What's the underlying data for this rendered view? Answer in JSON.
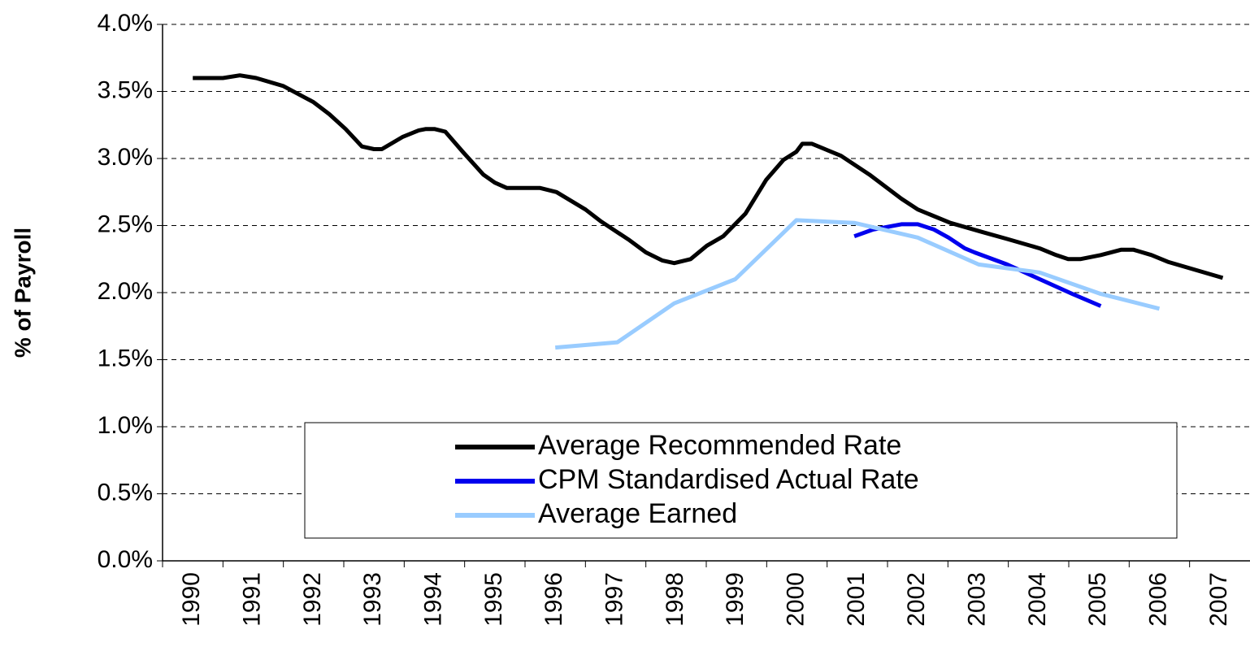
{
  "chart_data": {
    "type": "line",
    "y_label": "% of Payroll",
    "xlim": [
      1989.5,
      2007.5
    ],
    "xticks": [
      1990,
      1991,
      1992,
      1993,
      1994,
      1995,
      1996,
      1997,
      1998,
      1999,
      2000,
      2001,
      2002,
      2003,
      2004,
      2005,
      2006,
      2007
    ],
    "ylim": [
      0,
      4
    ],
    "yticks": [
      {
        "value": 0,
        "label": "0.0%"
      },
      {
        "value": 0.5,
        "label": "0.5%"
      },
      {
        "value": 1,
        "label": "1.0%"
      },
      {
        "value": 1.5,
        "label": "1.5%"
      },
      {
        "value": 2,
        "label": "2.0%"
      },
      {
        "value": 2.5,
        "label": "2.5%"
      },
      {
        "value": 3,
        "label": "3.0%"
      },
      {
        "value": 3.5,
        "label": "3.5%"
      },
      {
        "value": 4,
        "label": "4.0%"
      }
    ],
    "grid": true,
    "legend": "bottom",
    "series": [
      {
        "name": "Average Recommended Rate",
        "color": "#000000",
        "x": [
          1990.0,
          1990.5,
          1990.78,
          1991.05,
          1991.5,
          1992.0,
          1992.26,
          1992.53,
          1992.8,
          1993.0,
          1993.13,
          1993.47,
          1993.74,
          1993.86,
          1994.0,
          1994.18,
          1994.47,
          1994.81,
          1995.0,
          1995.2,
          1995.75,
          1996.02,
          1996.5,
          1996.76,
          1997.23,
          1997.5,
          1997.77,
          1997.97,
          1998.24,
          1998.51,
          1998.78,
          1999.15,
          1999.49,
          1999.78,
          1999.99,
          2000.09,
          2000.25,
          2000.73,
          2001.2,
          2001.73,
          2002.0,
          2002.54,
          2003.08,
          2003.48,
          2004.02,
          2004.29,
          2004.49,
          2004.69,
          2005.03,
          2005.37,
          2005.57,
          2005.87,
          2006.14,
          2007.05
        ],
        "values": [
          3.6,
          3.6,
          3.62,
          3.6,
          3.54,
          3.42,
          3.33,
          3.22,
          3.09,
          3.07,
          3.07,
          3.16,
          3.21,
          3.22,
          3.22,
          3.2,
          3.05,
          2.88,
          2.82,
          2.78,
          2.78,
          2.75,
          2.62,
          2.53,
          2.39,
          2.3,
          2.24,
          2.22,
          2.25,
          2.35,
          2.42,
          2.59,
          2.84,
          2.99,
          3.05,
          3.11,
          3.11,
          3.02,
          2.88,
          2.7,
          2.62,
          2.52,
          2.45,
          2.4,
          2.33,
          2.28,
          2.25,
          2.25,
          2.28,
          2.32,
          2.32,
          2.28,
          2.23,
          2.11
        ]
      },
      {
        "name": "CPM Standardised Actual Rate",
        "color": "#0000ee",
        "x": [
          2000.95,
          2001.26,
          2001.73,
          2002.0,
          2002.27,
          2002.51,
          2002.78,
          2002.94,
          2003.48,
          2004.02,
          2004.56,
          2005.03
        ],
        "values": [
          2.42,
          2.47,
          2.51,
          2.51,
          2.47,
          2.41,
          2.33,
          2.3,
          2.21,
          2.1,
          1.99,
          1.9
        ]
      },
      {
        "name": "Average Earned",
        "color": "#99ccff",
        "x": [
          1996.0,
          1997.03,
          1997.97,
          1998.98,
          1999.99,
          2000.95,
          2002.0,
          2003.01,
          2004.02,
          2005.03,
          2006.0
        ],
        "values": [
          1.59,
          1.63,
          1.92,
          2.1,
          2.54,
          2.52,
          2.41,
          2.21,
          2.15,
          1.99,
          1.88
        ]
      }
    ]
  }
}
